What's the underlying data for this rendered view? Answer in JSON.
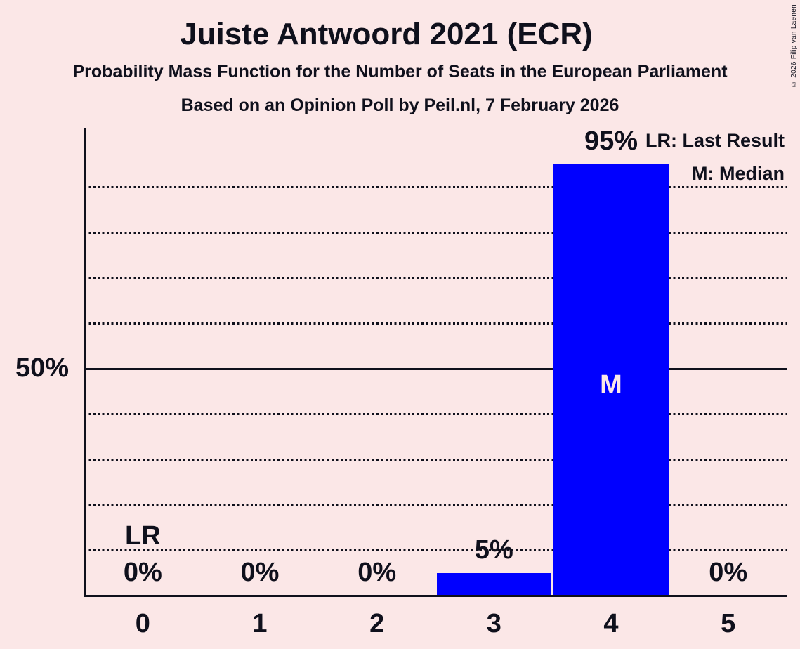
{
  "title": "Juiste Antwoord 2021 (ECR)",
  "subtitle1": "Probability Mass Function for the Number of Seats in the European Parliament",
  "subtitle2": "Based on an Opinion Poll by Peil.nl, 7 February 2026",
  "copyright": "© 2026 Filip van Laenen",
  "legend": {
    "last_result": "LR: Last Result",
    "median": "M: Median"
  },
  "y_axis": {
    "tick_label": "50%"
  },
  "colors": {
    "background": "#fbe7e7",
    "ink": "#0f101c",
    "bar": "#0000ff",
    "median_label": "#fbe7e7"
  },
  "chart_data": {
    "type": "bar",
    "title": "Juiste Antwoord 2021 (ECR)",
    "categories": [
      "0",
      "1",
      "2",
      "3",
      "4",
      "5"
    ],
    "values": [
      0,
      0,
      0,
      5,
      95,
      0
    ],
    "value_labels": [
      "0%",
      "0%",
      "0%",
      "5%",
      "95%",
      "0%"
    ],
    "xlabel": "",
    "ylabel": "",
    "ylim": [
      0,
      103
    ],
    "y_tick_labels_shown": [
      "50%"
    ],
    "y_solid_gridline_pct": 50,
    "y_dotted_gridlines_pct": [
      10,
      20,
      30,
      40,
      60,
      70,
      80,
      90
    ],
    "grid": "horizontal dotted",
    "legend_position": "top-right",
    "legend_entries": [
      "LR: Last Result",
      "M: Median"
    ],
    "annotations": [
      {
        "label": "LR",
        "category_index": 0
      },
      {
        "label": "M",
        "category_index": 4
      }
    ]
  }
}
